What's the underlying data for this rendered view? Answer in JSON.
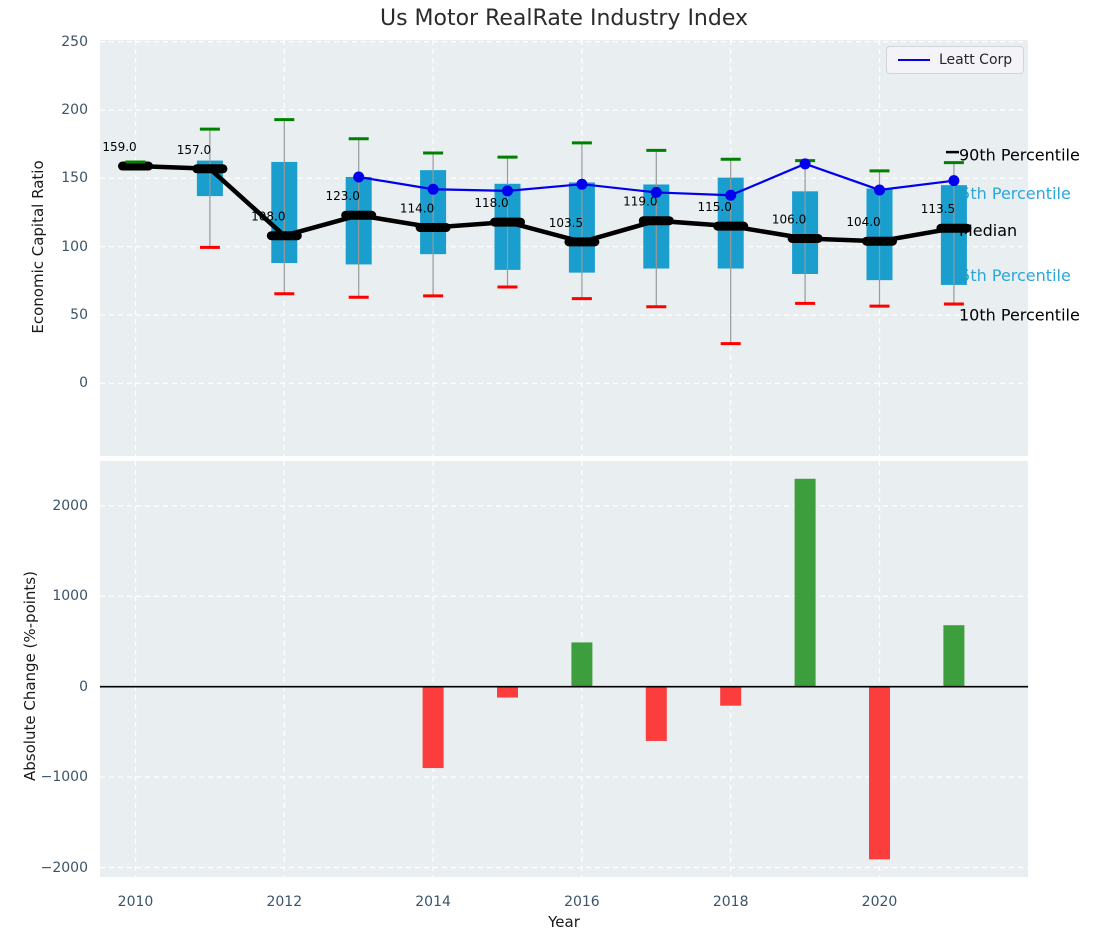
{
  "title": "Us Motor RealRate Industry Index",
  "colors": {
    "box": "#1a9ece",
    "whisker": "#999999",
    "cap_high": "#008000",
    "cap_low": "#ff0000",
    "median": "#000000",
    "leatt_line": "#0000ee",
    "bar_positive": "#3c9e3c",
    "bar_negative": "#fc3d3d",
    "plot_bg": "#e9eef0",
    "grid": "#ffffff",
    "tick_label": "#3d5468",
    "annotation_blue": "#2aa7d8",
    "zero_line": "#000000"
  },
  "chart_data": [
    {
      "type": "boxplot+line",
      "name": "economic-capital-ratio-panel",
      "ylabel": "Economic Capital Ratio",
      "yticks": [
        "250",
        "200",
        "150",
        "100",
        "50",
        "0"
      ],
      "ytick_values": [
        250,
        200,
        150,
        100,
        50,
        0
      ],
      "ylim": [
        -55,
        250
      ],
      "xlim": [
        2009.5,
        2022.0
      ],
      "grid": true,
      "legend_position": "upper right",
      "xtick_years": [
        2010,
        2012,
        2014,
        2016,
        2018,
        2020
      ],
      "years": [
        2010,
        2011,
        2012,
        2013,
        2014,
        2015,
        2016,
        2017,
        2018,
        2019,
        2020,
        2021
      ],
      "p90": [
        162,
        186,
        193,
        179,
        168.5,
        165.5,
        176,
        170.5,
        164,
        163,
        155.5,
        161.5
      ],
      "p75": [
        160.3,
        163,
        162,
        151,
        156,
        146,
        147,
        145.5,
        150.5,
        140.5,
        142.5,
        145
      ],
      "median": [
        159,
        157,
        108,
        123,
        114,
        118,
        103.5,
        119,
        115,
        106,
        104,
        113.5
      ],
      "p25": [
        157.8,
        137,
        88,
        87,
        94.5,
        83,
        81,
        84,
        84,
        80,
        75.5,
        72
      ],
      "p10": [
        157.4,
        99.5,
        65.5,
        63,
        64,
        70.5,
        62,
        56,
        29,
        58.5,
        56.5,
        58
      ],
      "median_labels": [
        "159.0",
        "157.0",
        "108.0",
        "123.0",
        "114.0",
        "118.0",
        "103.5",
        "119.0",
        "115.0",
        "106.0",
        "104.0",
        "113.5"
      ],
      "series": [
        {
          "name": "Leatt Corp",
          "color": "#0000ee",
          "x": [
            2013,
            2014,
            2015,
            2016,
            2017,
            2018,
            2019,
            2020,
            2021
          ],
          "y": [
            151.0,
            142.0,
            140.8,
            145.7,
            139.7,
            137.6,
            160.6,
            141.5,
            148.3
          ]
        }
      ],
      "annotations": [
        {
          "label": "90th Percentile",
          "y": 167.0,
          "layer": "over",
          "color": "#000000",
          "leader": true
        },
        {
          "label": "75th Percentile",
          "y": 139.0,
          "layer": "under",
          "color": "#2aa7d8"
        },
        {
          "label": "Median",
          "y": 112.0,
          "layer": "over",
          "color": "#000000"
        },
        {
          "label": "25th Percentile",
          "y": 79.0,
          "layer": "under",
          "color": "#2aa7d8"
        },
        {
          "label": "10th Percentile",
          "y": 50.0,
          "layer": "over",
          "color": "#000000"
        }
      ]
    },
    {
      "type": "bar",
      "name": "absolute-change-panel",
      "ylabel": "Absolute Change (%-points)",
      "xlabel": "Year",
      "yticks": [
        "2000",
        "1000",
        "0",
        "−1000",
        "−2000"
      ],
      "ytick_values": [
        2000,
        1000,
        0,
        -1000,
        -2000
      ],
      "ylim": [
        -2110,
        2500
      ],
      "grid": true,
      "xticks": [
        "2010",
        "2012",
        "2014",
        "2016",
        "2018",
        "2020"
      ],
      "xtick_years": [
        2010,
        2012,
        2014,
        2016,
        2018,
        2020
      ],
      "years": [
        2014,
        2015,
        2016,
        2017,
        2018,
        2019,
        2020,
        2021
      ],
      "values": [
        -900,
        -120,
        490,
        -600,
        -210,
        2300,
        -1910,
        680
      ]
    }
  ]
}
